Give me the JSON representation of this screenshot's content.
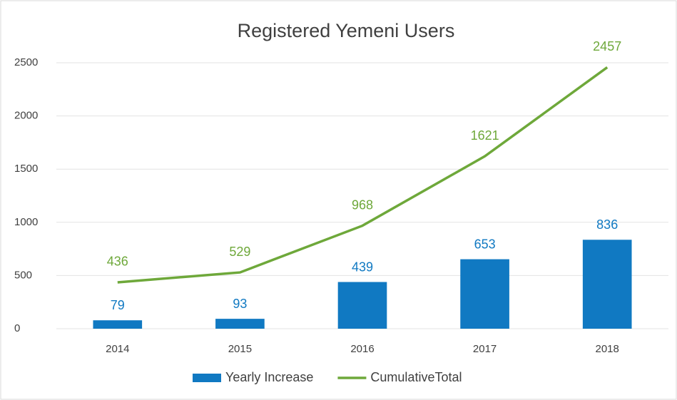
{
  "chart_data": {
    "type": "bar",
    "title": "Registered Yemeni Users",
    "categories": [
      "2014",
      "2015",
      "2016",
      "2017",
      "2018"
    ],
    "series": [
      {
        "name": "Yearly Increase",
        "type": "bar",
        "color": "#1079c2",
        "values": [
          79,
          93,
          439,
          653,
          836
        ]
      },
      {
        "name": "CumulativeTotal",
        "type": "line",
        "color": "#6ea83a",
        "values": [
          436,
          529,
          968,
          1621,
          2457
        ]
      }
    ],
    "ylim": [
      0,
      2500
    ],
    "yticks": [
      0,
      500,
      1000,
      1500,
      2000,
      2500
    ],
    "grid": true,
    "legend": "bottom"
  }
}
